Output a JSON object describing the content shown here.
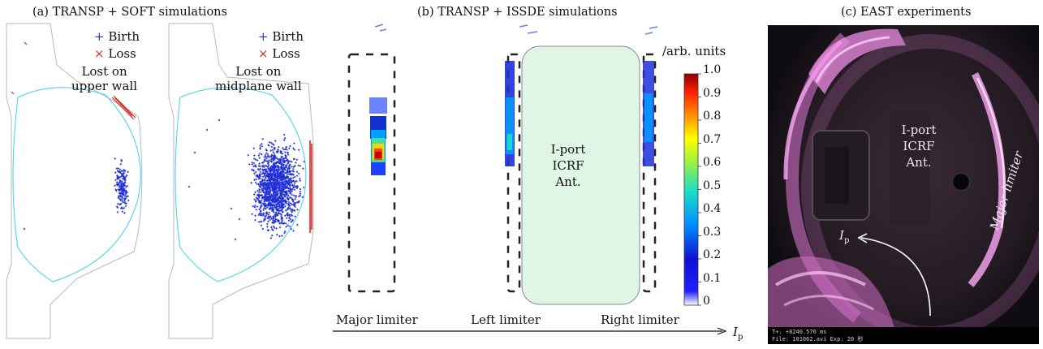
{
  "panel_a": {
    "caption": "(a) TRANSP + SOFT simulations",
    "legend": [
      {
        "marker": "+",
        "label": "Birth",
        "color": "#1f2fd8"
      },
      {
        "marker": "×",
        "label": "Loss",
        "color": "#e02020"
      }
    ],
    "left_note": [
      "Lost on",
      "upper wall"
    ],
    "right_note": [
      "Lost on",
      "midplane wall"
    ]
  },
  "panel_b": {
    "caption": "(b) TRANSP + ISSDE simulations",
    "antenna_label": [
      "I-port",
      "ICRF",
      "Ant."
    ],
    "limiters": [
      "Major limiter",
      "Left limiter",
      "Right limiter"
    ],
    "current_label": "I",
    "current_sub": "p",
    "colorbar": {
      "title": "/arb. units",
      "ticks": [
        "1.0",
        "0.9",
        "0.8",
        "0.7",
        "0.6",
        "0.5",
        "0.4",
        "0.3",
        "0.2",
        "0.1",
        "0"
      ]
    }
  },
  "panel_c": {
    "caption": "(c) EAST experiments",
    "antenna_label": [
      "I-port",
      "ICRF",
      "Ant."
    ],
    "limiter_label": "Major limiter",
    "current_label": "I",
    "current_sub": "p",
    "overlay_line1": "T+: +8240.576 ms",
    "overlay_line2": "File: 101062.avi  Exp: 20 秒"
  },
  "colors": {
    "birth": "#1f2fd8",
    "loss": "#e02020",
    "separatrix": "#3fd0e8",
    "antenna_fill": "#dff5e6",
    "photo_glow": "#e27ad8"
  }
}
